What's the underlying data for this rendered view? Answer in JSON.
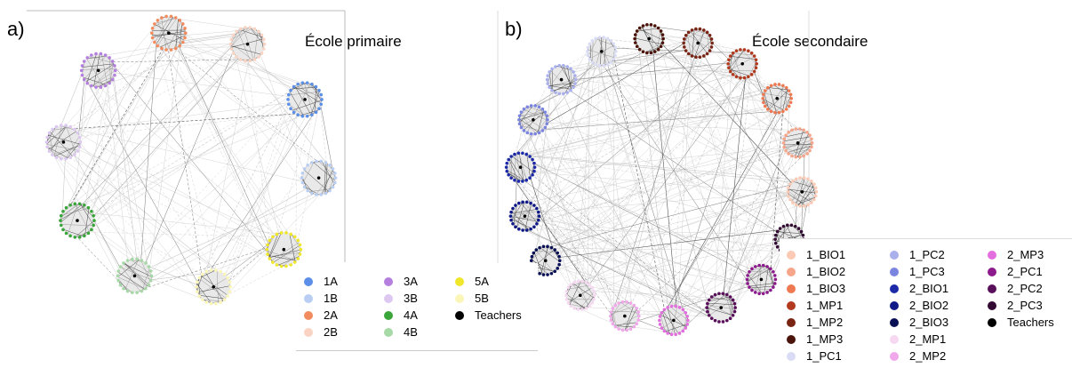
{
  "panel_a": {
    "letter": "a)",
    "title": "École primaire",
    "legend": [
      {
        "label": "1A",
        "color": "#5b8fe8"
      },
      {
        "label": "1B",
        "color": "#b9cef2"
      },
      {
        "label": "2A",
        "color": "#f28c5e"
      },
      {
        "label": "2B",
        "color": "#fad3c3"
      },
      {
        "label": "3A",
        "color": "#b57fe0"
      },
      {
        "label": "3B",
        "color": "#dcc8f0"
      },
      {
        "label": "4A",
        "color": "#3aa63a"
      },
      {
        "label": "4B",
        "color": "#a6d9a6"
      },
      {
        "label": "5A",
        "color": "#f0e62a"
      },
      {
        "label": "5B",
        "color": "#faf6b8"
      },
      {
        "label": "Teachers",
        "color": "#000000"
      }
    ],
    "clusters": [
      "2A",
      "2B",
      "1A",
      "1B",
      "5A",
      "5B",
      "4B",
      "4A",
      "3B",
      "3A"
    ]
  },
  "panel_b": {
    "letter": "b)",
    "title": "École secondaire",
    "legend": [
      {
        "label": "1_BIO1",
        "color": "#fbc9b4"
      },
      {
        "label": "1_BIO2",
        "color": "#f7a58a"
      },
      {
        "label": "1_BIO3",
        "color": "#ef7a52"
      },
      {
        "label": "1_MP1",
        "color": "#b23a1e"
      },
      {
        "label": "1_MP2",
        "color": "#7a2414"
      },
      {
        "label": "1_MP3",
        "color": "#4a140a"
      },
      {
        "label": "1_PC1",
        "color": "#d9dcf4"
      },
      {
        "label": "1_PC2",
        "color": "#a9b0ec"
      },
      {
        "label": "1_PC3",
        "color": "#7b85e0"
      },
      {
        "label": "2_BIO1",
        "color": "#1c2aa8"
      },
      {
        "label": "2_BIO2",
        "color": "#0f1a86"
      },
      {
        "label": "2_BIO3",
        "color": "#0a1055"
      },
      {
        "label": "2_MP1",
        "color": "#f6d8f2"
      },
      {
        "label": "2_MP2",
        "color": "#f0a8ea"
      },
      {
        "label": "2_MP3",
        "color": "#e46de0"
      },
      {
        "label": "2_PC1",
        "color": "#8c1a8c"
      },
      {
        "label": "2_PC2",
        "color": "#5a0f5a"
      },
      {
        "label": "2_PC3",
        "color": "#320a32"
      },
      {
        "label": "Teachers",
        "color": "#000000"
      }
    ],
    "clusters": [
      "1_MP3",
      "1_MP2",
      "1_MP1",
      "1_BIO3",
      "1_BIO2",
      "1_BIO1",
      "2_PC3",
      "2_PC1",
      "2_PC2",
      "2_MP3",
      "2_MP2",
      "2_MP1",
      "2_BIO3",
      "2_BIO2",
      "2_BIO1",
      "1_PC3",
      "1_PC2",
      "1_PC1"
    ]
  }
}
